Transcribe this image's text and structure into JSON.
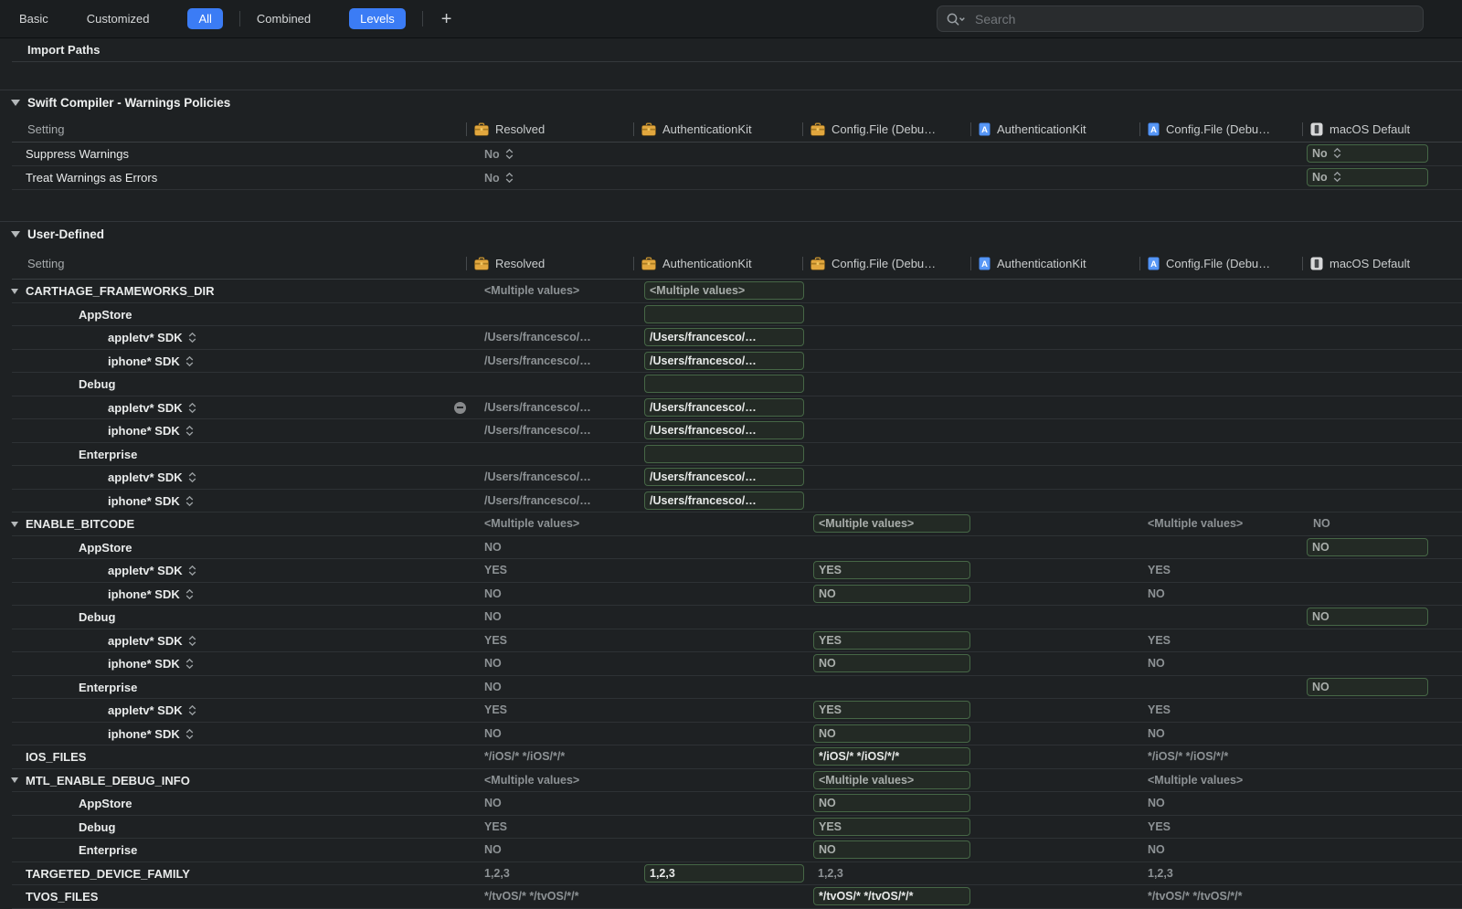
{
  "toolbar": {
    "tabs": [
      {
        "label": "Basic",
        "active": false,
        "sep_after": false
      },
      {
        "label": "Customized",
        "active": false,
        "sep_after": false
      },
      {
        "label": "All",
        "active": true,
        "sep_after": true
      },
      {
        "label": "Combined",
        "active": false,
        "sep_after": false
      },
      {
        "label": "Levels",
        "active": true,
        "sep_after": true
      }
    ],
    "add_button_label": "+",
    "search": {
      "placeholder": "Search",
      "icon": "search-with-chevron-icon"
    }
  },
  "import_row": {
    "label": "Import Paths"
  },
  "columns": [
    {
      "label": "Setting",
      "icon": "none"
    },
    {
      "label": "Resolved",
      "icon": "briefcase-icon"
    },
    {
      "label": "AuthenticationKit",
      "icon": "briefcase-icon"
    },
    {
      "label": "Config.File (Debu…",
      "icon": "briefcase-icon"
    },
    {
      "label": "AuthenticationKit",
      "icon": "project-file-icon"
    },
    {
      "label": "Config.File (Debu…",
      "icon": "project-file-icon"
    },
    {
      "label": "macOS Default",
      "icon": "macos-icon"
    }
  ],
  "colors": {
    "accent_blue": "#3b7cf5",
    "box_border_green": "#466746",
    "background": "#1e2123"
  },
  "sections": [
    {
      "title": "Swift Compiler - Warnings Policies",
      "rows": [
        {
          "label": "Suppress Warnings",
          "level": 0,
          "bold": false,
          "cells": {
            "resolved": {
              "text": "No",
              "stepper": true
            },
            "macos": {
              "text": "No",
              "boxed": true,
              "stepper": true
            }
          }
        },
        {
          "label": "Treat Warnings as Errors",
          "level": 0,
          "bold": false,
          "cells": {
            "resolved": {
              "text": "No",
              "stepper": true
            },
            "macos": {
              "text": "No",
              "boxed": true,
              "stepper": true
            }
          }
        }
      ]
    },
    {
      "title": "User-Defined",
      "rows": [
        {
          "label": "CARTHAGE_FRAMEWORKS_DIR",
          "level": 0,
          "disclosure": true,
          "cells": {
            "resolved": {
              "text": "<Multiple values>"
            },
            "auth": {
              "text": "<Multiple values>",
              "boxed": true
            }
          }
        },
        {
          "label": "AppStore",
          "level": 1,
          "cells": {
            "auth": {
              "text": "",
              "boxed": true
            }
          }
        },
        {
          "label": "appletv* SDK",
          "level": 2,
          "stepper": true,
          "cells": {
            "resolved": {
              "text": "/Users/francesco/…"
            },
            "auth": {
              "text": "/Users/francesco/…",
              "boxed": true,
              "bright": true
            }
          }
        },
        {
          "label": "iphone* SDK",
          "level": 2,
          "stepper": true,
          "cells": {
            "resolved": {
              "text": "/Users/francesco/…"
            },
            "auth": {
              "text": "/Users/francesco/…",
              "boxed": true,
              "bright": true
            }
          }
        },
        {
          "label": "Debug",
          "level": 1,
          "cells": {
            "auth": {
              "text": "",
              "boxed": true
            }
          }
        },
        {
          "label": "appletv* SDK",
          "level": 2,
          "stepper": true,
          "cells": {
            "resolved": {
              "text": "/Users/francesco/…",
              "minus": true
            },
            "auth": {
              "text": "/Users/francesco/…",
              "boxed": true,
              "bright": true
            }
          }
        },
        {
          "label": "iphone* SDK",
          "level": 2,
          "stepper": true,
          "cells": {
            "resolved": {
              "text": "/Users/francesco/…"
            },
            "auth": {
              "text": "/Users/francesco/…",
              "boxed": true,
              "bright": true
            }
          }
        },
        {
          "label": "Enterprise",
          "level": 1,
          "cells": {
            "auth": {
              "text": "",
              "boxed": true
            }
          }
        },
        {
          "label": "appletv* SDK",
          "level": 2,
          "stepper": true,
          "cells": {
            "resolved": {
              "text": "/Users/francesco/…"
            },
            "auth": {
              "text": "/Users/francesco/…",
              "boxed": true,
              "bright": true
            }
          }
        },
        {
          "label": "iphone* SDK",
          "level": 2,
          "stepper": true,
          "cells": {
            "resolved": {
              "text": "/Users/francesco/…"
            },
            "auth": {
              "text": "/Users/francesco/…",
              "boxed": true,
              "bright": true
            }
          }
        },
        {
          "label": "ENABLE_BITCODE",
          "level": 0,
          "disclosure": true,
          "cells": {
            "resolved": {
              "text": "<Multiple values>"
            },
            "cfg1": {
              "text": "<Multiple values>",
              "boxed": true
            },
            "cfg2": {
              "text": "<Multiple values>"
            },
            "macos": {
              "text": "NO"
            }
          }
        },
        {
          "label": "AppStore",
          "level": 1,
          "cells": {
            "resolved": {
              "text": "NO"
            },
            "macos": {
              "text": "NO",
              "boxed": true
            }
          }
        },
        {
          "label": "appletv* SDK",
          "level": 2,
          "stepper": true,
          "cells": {
            "resolved": {
              "text": "YES"
            },
            "cfg1": {
              "text": "YES",
              "boxed": true
            },
            "cfg2": {
              "text": "YES"
            }
          }
        },
        {
          "label": "iphone* SDK",
          "level": 2,
          "stepper": true,
          "cells": {
            "resolved": {
              "text": "NO"
            },
            "cfg1": {
              "text": "NO",
              "boxed": true
            },
            "cfg2": {
              "text": "NO"
            }
          }
        },
        {
          "label": "Debug",
          "level": 1,
          "cells": {
            "resolved": {
              "text": "NO"
            },
            "macos": {
              "text": "NO",
              "boxed": true
            }
          }
        },
        {
          "label": "appletv* SDK",
          "level": 2,
          "stepper": true,
          "cells": {
            "resolved": {
              "text": "YES"
            },
            "cfg1": {
              "text": "YES",
              "boxed": true
            },
            "cfg2": {
              "text": "YES"
            }
          }
        },
        {
          "label": "iphone* SDK",
          "level": 2,
          "stepper": true,
          "cells": {
            "resolved": {
              "text": "NO"
            },
            "cfg1": {
              "text": "NO",
              "boxed": true
            },
            "cfg2": {
              "text": "NO"
            }
          }
        },
        {
          "label": "Enterprise",
          "level": 1,
          "cells": {
            "resolved": {
              "text": "NO"
            },
            "macos": {
              "text": "NO",
              "boxed": true
            }
          }
        },
        {
          "label": "appletv* SDK",
          "level": 2,
          "stepper": true,
          "cells": {
            "resolved": {
              "text": "YES"
            },
            "cfg1": {
              "text": "YES",
              "boxed": true
            },
            "cfg2": {
              "text": "YES"
            }
          }
        },
        {
          "label": "iphone* SDK",
          "level": 2,
          "stepper": true,
          "cells": {
            "resolved": {
              "text": "NO"
            },
            "cfg1": {
              "text": "NO",
              "boxed": true
            },
            "cfg2": {
              "text": "NO"
            }
          }
        },
        {
          "label": "IOS_FILES",
          "level": 0,
          "cells": {
            "resolved": {
              "text": "*/iOS/* */iOS/*/*"
            },
            "cfg1": {
              "text": "*/iOS/* */iOS/*/*",
              "boxed": true,
              "bright": true
            },
            "cfg2": {
              "text": "*/iOS/* */iOS/*/*"
            }
          }
        },
        {
          "label": "MTL_ENABLE_DEBUG_INFO",
          "level": 0,
          "disclosure": true,
          "cells": {
            "resolved": {
              "text": "<Multiple values>"
            },
            "cfg1": {
              "text": "<Multiple values>",
              "boxed": true
            },
            "cfg2": {
              "text": "<Multiple values>"
            }
          }
        },
        {
          "label": "AppStore",
          "level": 1,
          "cells": {
            "resolved": {
              "text": "NO"
            },
            "cfg1": {
              "text": "NO",
              "boxed": true
            },
            "cfg2": {
              "text": "NO"
            }
          }
        },
        {
          "label": "Debug",
          "level": 1,
          "cells": {
            "resolved": {
              "text": "YES"
            },
            "cfg1": {
              "text": "YES",
              "boxed": true
            },
            "cfg2": {
              "text": "YES"
            }
          }
        },
        {
          "label": "Enterprise",
          "level": 1,
          "cells": {
            "resolved": {
              "text": "NO"
            },
            "cfg1": {
              "text": "NO",
              "boxed": true
            },
            "cfg2": {
              "text": "NO"
            }
          }
        },
        {
          "label": "TARGETED_DEVICE_FAMILY",
          "level": 0,
          "cells": {
            "resolved": {
              "text": "1,2,3"
            },
            "auth": {
              "text": "1,2,3",
              "boxed": true,
              "bright": true
            },
            "cfg1": {
              "text": "1,2,3"
            },
            "cfg2": {
              "text": "1,2,3"
            }
          }
        },
        {
          "label": "TVOS_FILES",
          "level": 0,
          "cells": {
            "resolved": {
              "text": "*/tvOS/* */tvOS/*/*"
            },
            "cfg1": {
              "text": "*/tvOS/* */tvOS/*/*",
              "boxed": true,
              "bright": true
            },
            "cfg2": {
              "text": "*/tvOS/* */tvOS/*/*"
            }
          }
        }
      ]
    }
  ]
}
